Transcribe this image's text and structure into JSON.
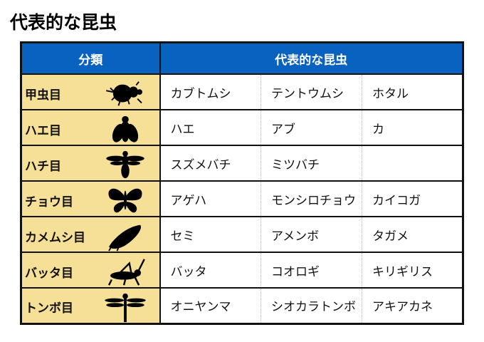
{
  "title": "代表的な昆虫",
  "header": {
    "category": "分類",
    "examples": "代表的な昆虫"
  },
  "rows": [
    {
      "order": "甲虫目",
      "icon": "beetle-icon",
      "insects": [
        "カブトムシ",
        "テントウムシ",
        "ホタル"
      ]
    },
    {
      "order": "ハエ目",
      "icon": "fly-icon",
      "insects": [
        "ハエ",
        "アブ",
        "カ"
      ]
    },
    {
      "order": "ハチ目",
      "icon": "bee-icon",
      "insects": [
        "スズメバチ",
        "ミツバチ",
        ""
      ]
    },
    {
      "order": "チョウ目",
      "icon": "butterfly-icon",
      "insects": [
        "アゲハ",
        "モンシロチョウ",
        "カイコガ"
      ]
    },
    {
      "order": "カメムシ目",
      "icon": "cicada-icon",
      "insects": [
        "セミ",
        "アメンボ",
        "タガメ"
      ]
    },
    {
      "order": "バッタ目",
      "icon": "grasshopper-icon",
      "insects": [
        "バッタ",
        "コオロギ",
        "キリギリス"
      ]
    },
    {
      "order": "トンボ目",
      "icon": "dragonfly-icon",
      "insects": [
        "オニヤンマ",
        "シオカラトンボ",
        "アキアカネ"
      ]
    }
  ],
  "colors": {
    "header": "#0a62c0",
    "category_bg": "#f6df96"
  }
}
